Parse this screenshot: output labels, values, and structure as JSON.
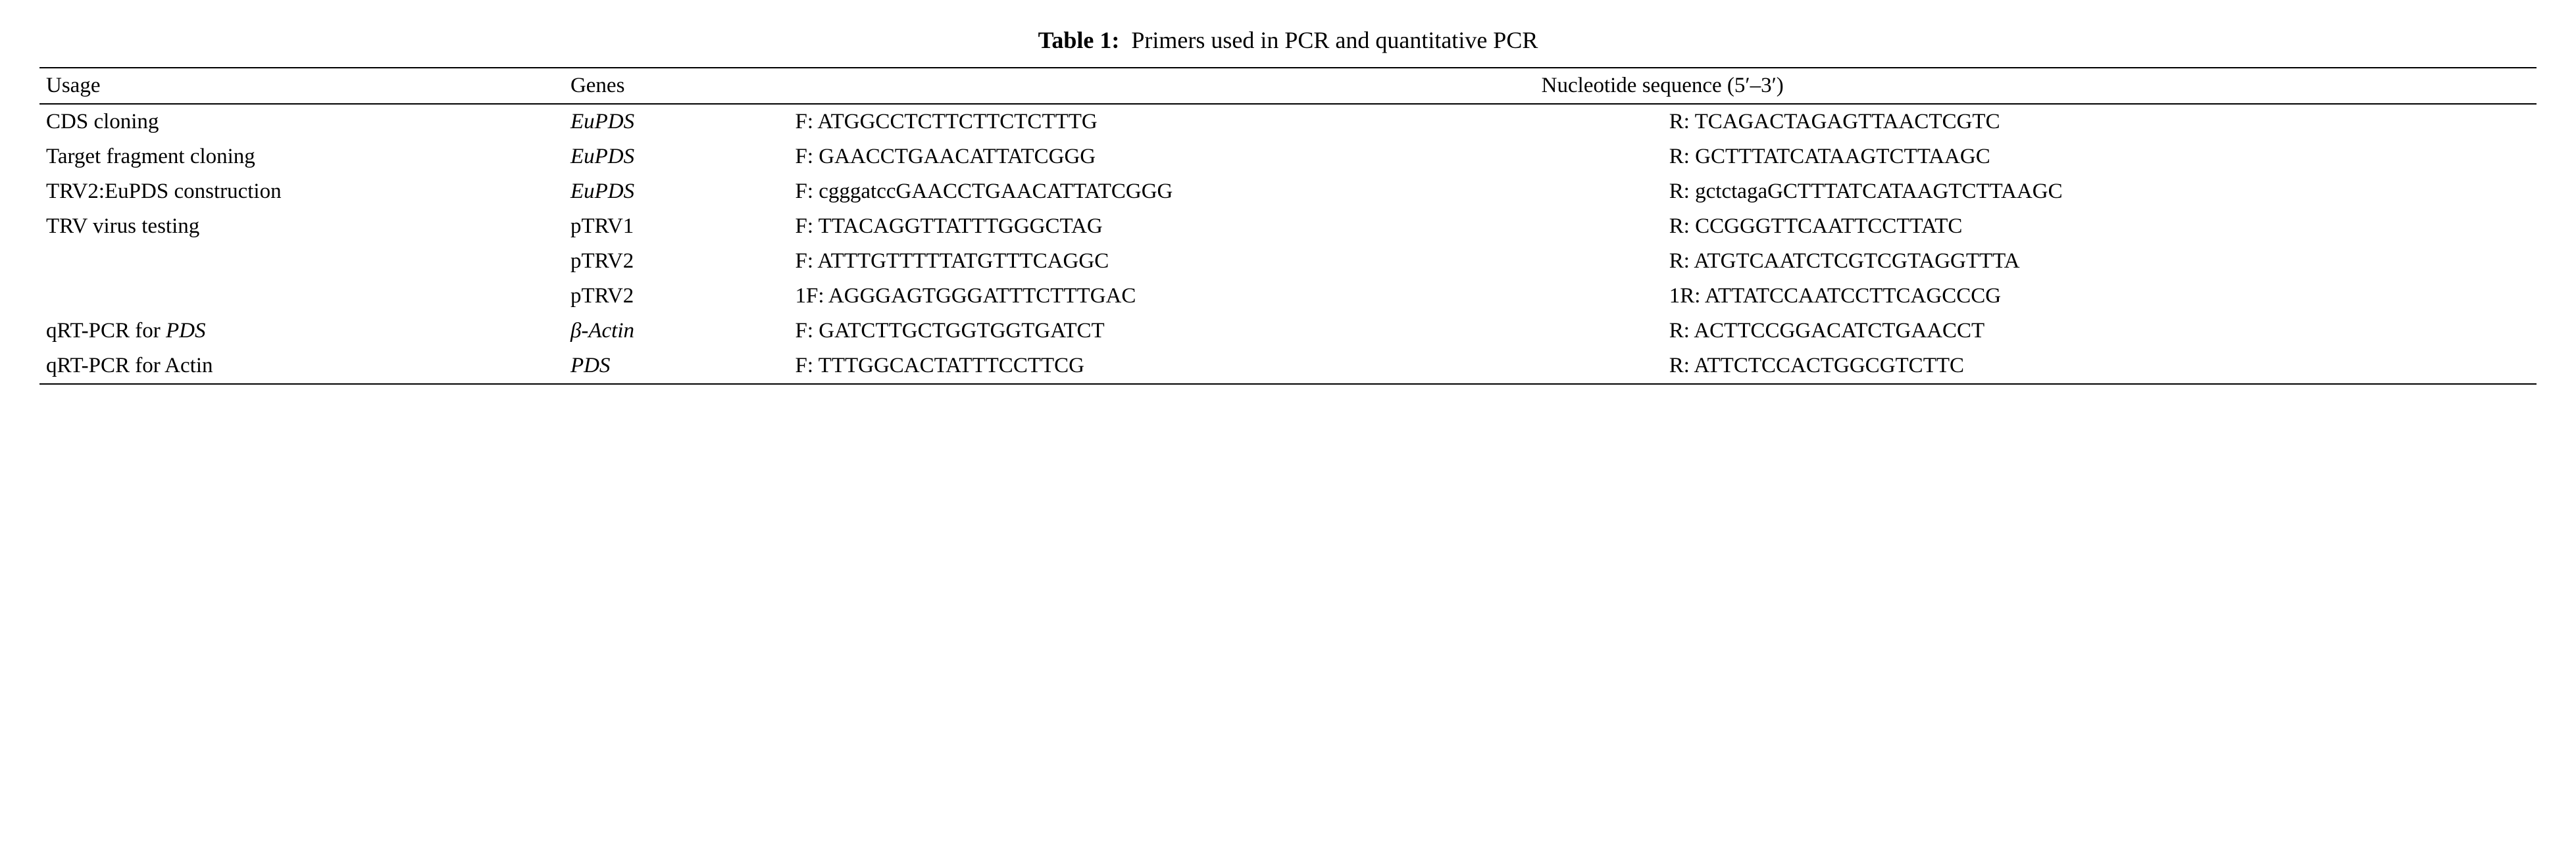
{
  "title": {
    "label": "Table 1:",
    "text": "Primers used in PCR and quantitative PCR"
  },
  "headers": {
    "usage": "Usage",
    "genes": "Genes",
    "sequence": "Nucleotide sequence (5′–3′)"
  },
  "rows": [
    {
      "usage": "CDS cloning",
      "gene": "EuPDS",
      "gene_italic": true,
      "forward": "F: ATGGCCTCTTCTTCTCTTTG",
      "reverse": "R: TCAGACTAGAGTTAACTCGTC"
    },
    {
      "usage": "Target fragment cloning",
      "gene": "EuPDS",
      "gene_italic": true,
      "forward": "F: GAACCTGAACATTATCGGG",
      "reverse": "R: GCTTTATCATAAGTCTTAAGC"
    },
    {
      "usage": "TRV2:EuPDS construction",
      "gene": "EuPDS",
      "gene_italic": true,
      "forward": "F: cgggatccGAACCTGAACATTATCGGG",
      "reverse": "R: gctctagaGCTTTATCATAAGTCTTAAGC"
    },
    {
      "usage": "TRV virus testing",
      "gene": "pTRV1",
      "gene_italic": false,
      "forward": "F: TTACAGGTTATTTGGGCTAG",
      "reverse": "R: CCGGGTTCAATTCCTTATC"
    },
    {
      "usage": "",
      "gene": "pTRV2",
      "gene_italic": false,
      "forward": "F: ATTTGTTTTTATGTTTCAGGC",
      "reverse": "R: ATGTCAATCTCGTCGTAGGTTTA"
    },
    {
      "usage": "",
      "gene": "pTRV2",
      "gene_italic": false,
      "forward": "1F: AGGGAGTGGGATTTCTTTGAC",
      "reverse": "1R: ATTATCCAATCCTTCAGCCCG"
    },
    {
      "usage_prefix": "qRT-PCR for ",
      "usage_italic": "PDS",
      "gene": "β-Actin",
      "gene_italic": true,
      "forward": "F: GATCTTGCTGGTGGTGATCT",
      "reverse": "R: ACTTCCGGACATCTGAACCT"
    },
    {
      "usage": "qRT-PCR for Actin",
      "gene": "PDS",
      "gene_italic": true,
      "forward": "F: TTTGGCACTATTTCCTTCG",
      "reverse": "R: ATTCTCCACTGGCGTCTTC"
    }
  ],
  "style": {
    "font_family": "Times New Roman",
    "title_fontsize": 36,
    "body_fontsize": 33,
    "border_color": "#000000",
    "background_color": "#ffffff",
    "text_color": "#000000",
    "col_widths": {
      "usage": "21%",
      "genes": "9%",
      "forward": "35%",
      "reverse": "35%"
    }
  }
}
